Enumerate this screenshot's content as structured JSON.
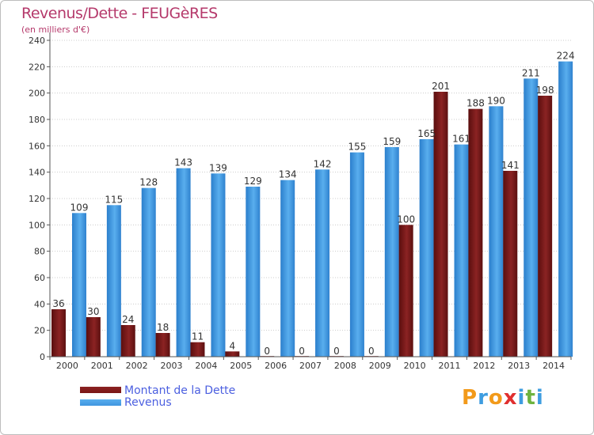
{
  "title": "Revenus/Dette - FEUGèRES",
  "subtitle": "(en milliers d'€)",
  "colors": {
    "dette": "#7a1616",
    "revenus": "#3f95e0",
    "axis": "#555555",
    "grid": "#cccccc",
    "title": "#b5396b",
    "legend_text": "#4b5fe0"
  },
  "chart_data": {
    "type": "bar",
    "categories": [
      "2000",
      "2001",
      "2002",
      "2003",
      "2004",
      "2005",
      "2006",
      "2007",
      "2008",
      "2009",
      "2010",
      "2011",
      "2012",
      "2013",
      "2014"
    ],
    "series": [
      {
        "name": "Montant de la Dette",
        "values": [
          36,
          30,
          24,
          18,
          11,
          4,
          0,
          0,
          0,
          0,
          100,
          201,
          188,
          141,
          198
        ]
      },
      {
        "name": "Revenus",
        "values": [
          109,
          115,
          128,
          143,
          139,
          129,
          134,
          142,
          155,
          159,
          165,
          161,
          190,
          211,
          224
        ]
      }
    ],
    "y_ticks": [
      0,
      20,
      40,
      60,
      80,
      100,
      120,
      140,
      160,
      180,
      200,
      220,
      240
    ],
    "ylim": [
      0,
      240
    ],
    "grid": true,
    "legend_position": "bottom-left"
  },
  "legend": {
    "dette": "Montant de la Dette",
    "revenus": "Revenus"
  },
  "logo": {
    "letters": [
      "P",
      "r",
      "o",
      "x",
      "i",
      "t",
      "i"
    ],
    "colors": [
      "#f29a1a",
      "#3e9de0",
      "#f29a1a",
      "#e02f2f",
      "#3e9de0",
      "#6db33f",
      "#3e9de0"
    ]
  }
}
